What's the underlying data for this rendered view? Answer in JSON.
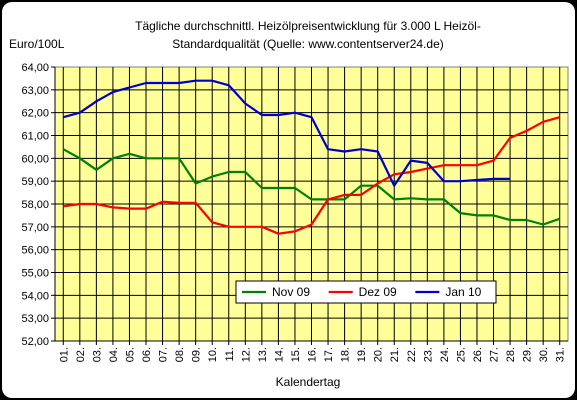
{
  "chart_data": {
    "type": "line",
    "title_lines": [
      "Tägliche durchschnittl. Heizölpreisentwicklung für 3.000 L Heizöl-",
      "Standardqualität (Quelle: www.contentserver24.de)"
    ],
    "ylabel": "Euro/100L",
    "xlabel": "Kalendertag",
    "ylim": [
      52,
      64
    ],
    "y_ticks": [
      "52,00",
      "53,00",
      "54,00",
      "55,00",
      "56,00",
      "57,00",
      "58,00",
      "59,00",
      "60,00",
      "61,00",
      "62,00",
      "63,00",
      "64,00"
    ],
    "x": [
      "01.",
      "02.",
      "03.",
      "04.",
      "05.",
      "06.",
      "07.",
      "08.",
      "09.",
      "10.",
      "11.",
      "12.",
      "13.",
      "14.",
      "15.",
      "16.",
      "17.",
      "18.",
      "19.",
      "20.",
      "21.",
      "22.",
      "23.",
      "24.",
      "25.",
      "26.",
      "27.",
      "28.",
      "29.",
      "30.",
      "31."
    ],
    "grid": true,
    "legend_position": "bottom-right",
    "plot_background": "#ffff99",
    "series": [
      {
        "name": "Nov 09",
        "color": "#008000",
        "values": [
          60.4,
          60.0,
          59.5,
          60.0,
          60.2,
          60.0,
          60.0,
          60.0,
          58.9,
          59.2,
          59.4,
          59.4,
          58.7,
          58.7,
          58.7,
          58.2,
          58.2,
          58.2,
          58.8,
          58.8,
          58.2,
          58.25,
          58.2,
          58.2,
          57.6,
          57.5,
          57.5,
          57.3,
          57.3,
          57.1,
          57.35
        ]
      },
      {
        "name": "Dez 09",
        "color": "#ff0000",
        "values": [
          57.9,
          58.0,
          58.0,
          57.85,
          57.8,
          57.8,
          58.1,
          58.05,
          58.05,
          57.2,
          57.0,
          57.0,
          57.0,
          56.7,
          56.8,
          57.1,
          58.2,
          58.4,
          58.4,
          58.9,
          59.3,
          59.4,
          59.55,
          59.7,
          59.7,
          59.7,
          59.9,
          60.9,
          61.2,
          61.6,
          61.8
        ]
      },
      {
        "name": "Jan 10",
        "color": "#0000cc",
        "values": [
          61.8,
          62.0,
          62.5,
          62.9,
          63.1,
          63.3,
          63.3,
          63.3,
          63.4,
          63.4,
          63.2,
          62.4,
          61.9,
          61.9,
          62.0,
          61.8,
          60.4,
          60.3,
          60.4,
          60.3,
          58.8,
          59.9,
          59.8,
          59.0,
          59.0,
          59.05,
          59.1,
          59.1,
          null,
          null,
          null
        ]
      }
    ]
  }
}
